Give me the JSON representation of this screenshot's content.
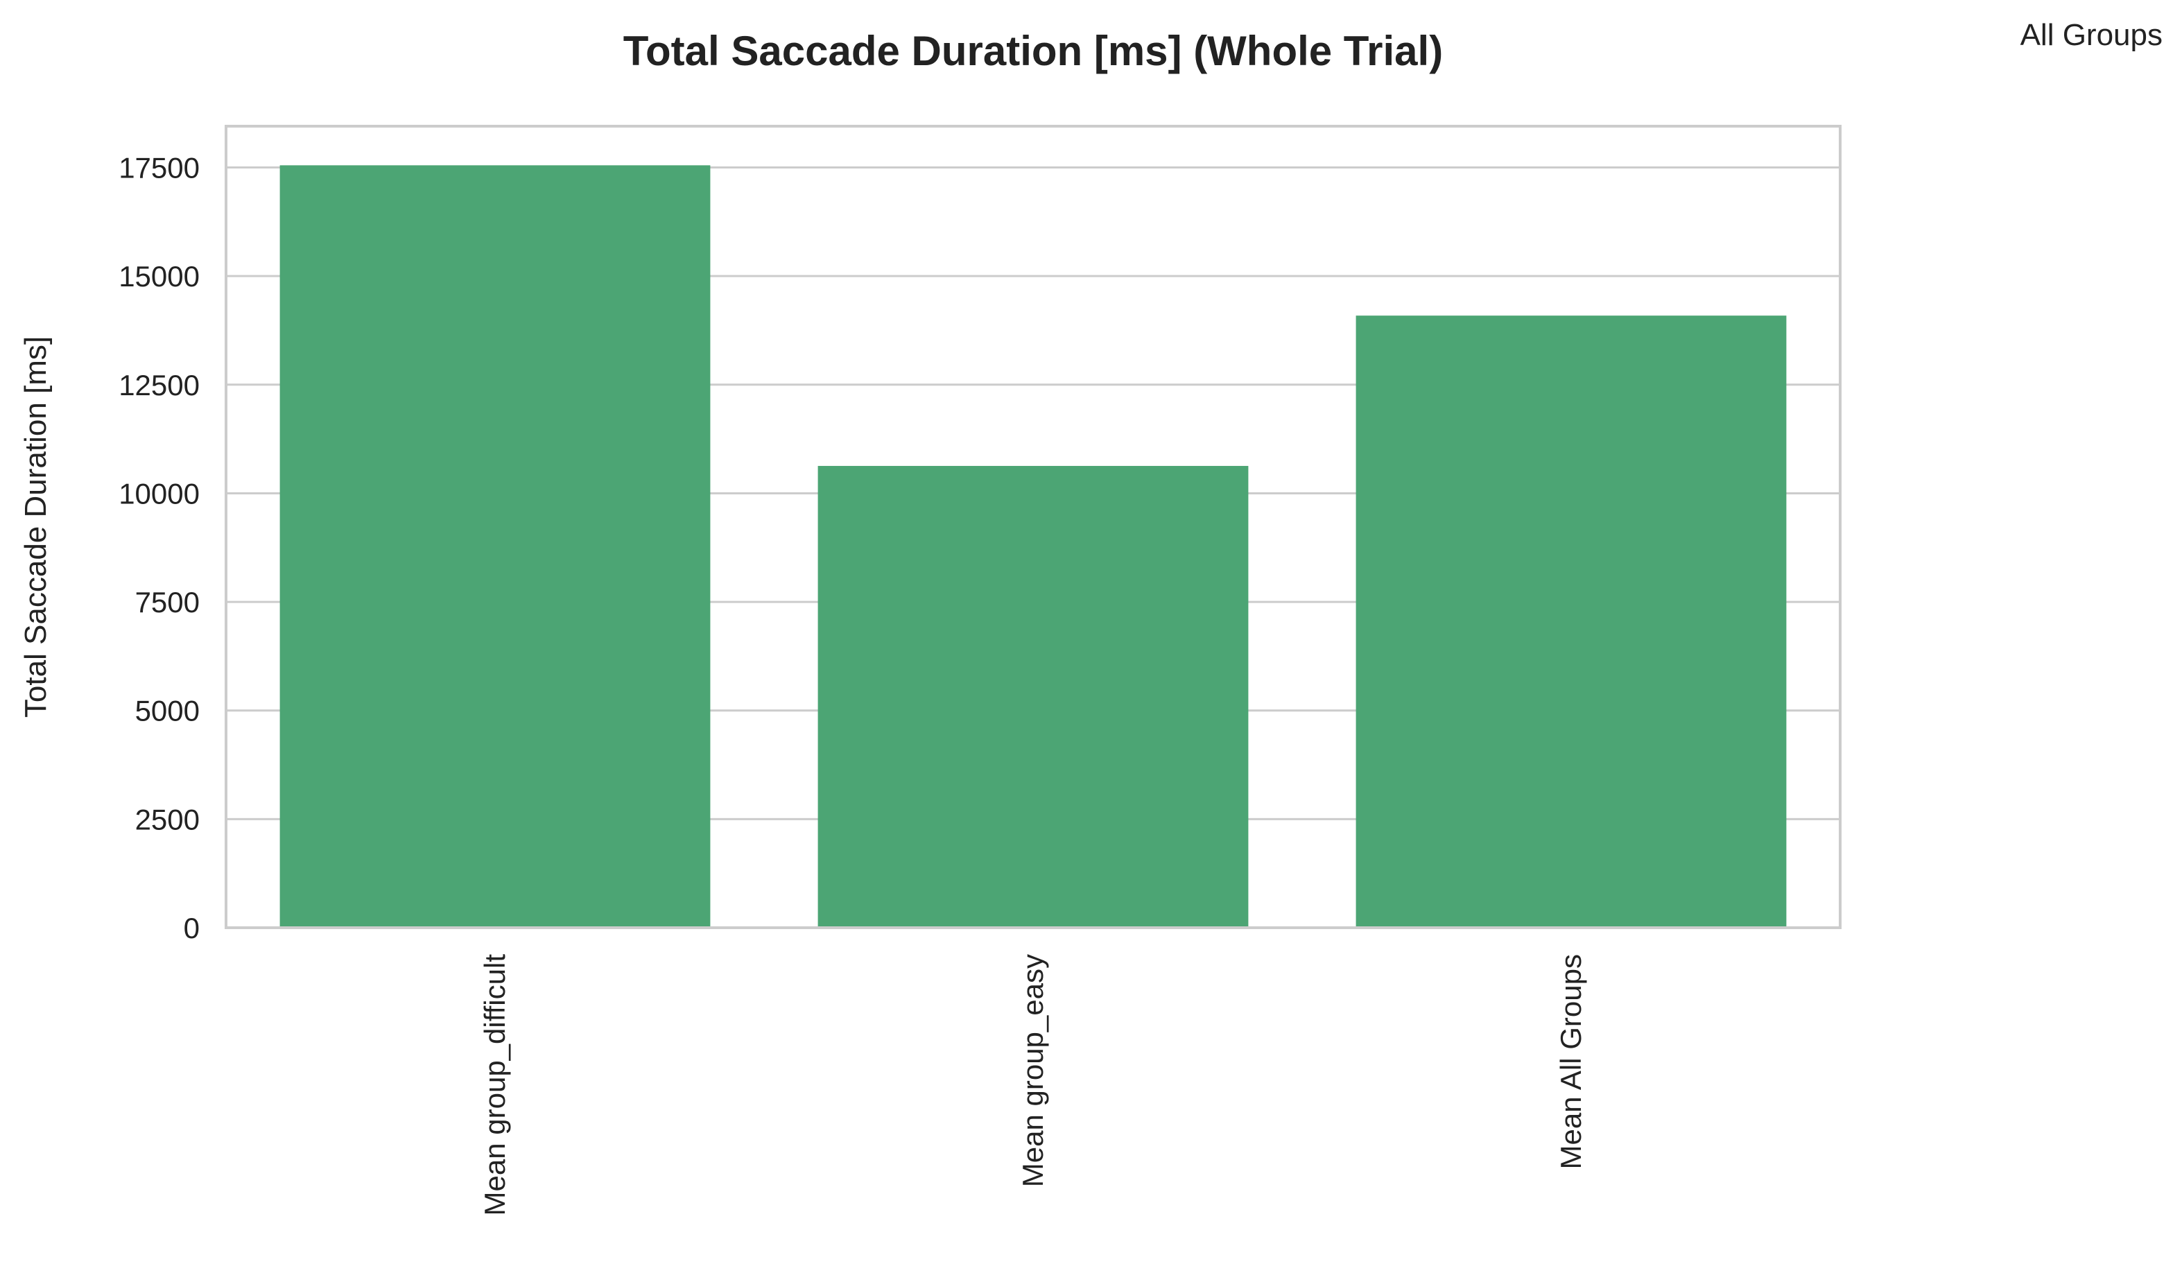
{
  "chart_data": {
    "type": "bar",
    "title": "Total Saccade Duration [ms] (Whole Trial)",
    "xlabel": "",
    "ylabel": "Total Saccade Duration [ms]",
    "categories": [
      "Mean group_difficult",
      "Mean group_easy",
      "Mean All Groups"
    ],
    "series": [
      {
        "name": "All Groups",
        "values": [
          17550,
          10630,
          14090
        ]
      }
    ],
    "ylim": [
      0,
      18450
    ],
    "yticks": [
      0,
      2500,
      5000,
      7500,
      10000,
      12500,
      15000,
      17500
    ],
    "ytick_labels": [
      "0",
      "2500",
      "5000",
      "7500",
      "10000",
      "12500",
      "15000",
      "17500"
    ],
    "grid": true,
    "legend_position": "top-right",
    "x_tick_rotation": "vertical",
    "colors": {
      "bar": "#4ca574",
      "grid": "#cccccc",
      "axis": "#cccccc",
      "text": "#222222",
      "background": "#ffffff"
    }
  }
}
